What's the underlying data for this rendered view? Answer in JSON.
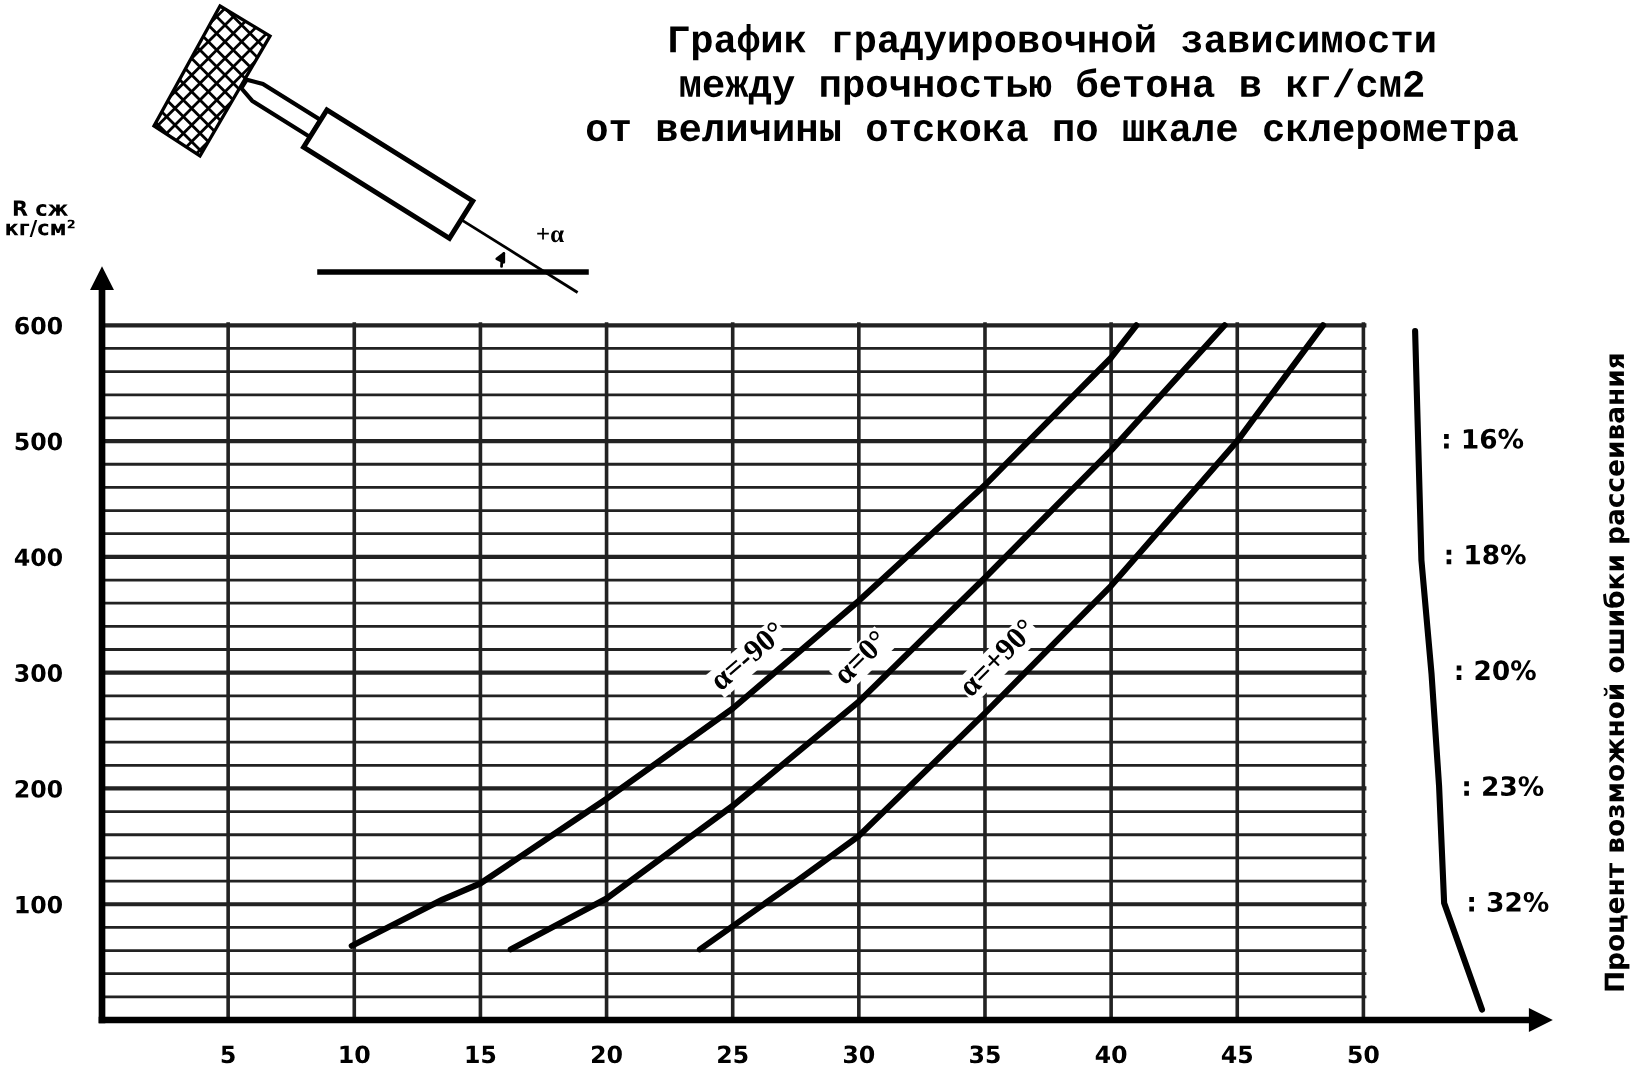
{
  "chart_data": {
    "type": "line",
    "title": "График градуировочной зависимости\nмежду прочностью бетона в кг/см2\nот величины отскока по шкале склерометра",
    "ylabel": "R сж\nкг/см²",
    "xlim": [
      0,
      57
    ],
    "xticks": [
      5,
      10,
      15,
      20,
      25,
      30,
      35,
      40,
      45,
      50
    ],
    "ylim": [
      0,
      640
    ],
    "yticks": [
      {
        "value": 20,
        "label": null
      },
      {
        "value": 40,
        "label": null
      },
      {
        "value": 60,
        "label": null
      },
      {
        "value": 80,
        "label": null
      },
      100,
      {
        "value": 120,
        "label": null
      },
      {
        "value": 140,
        "label": null
      },
      {
        "value": 160,
        "label": null
      },
      {
        "value": 180,
        "label": null
      },
      200,
      {
        "value": 220,
        "label": null
      },
      {
        "value": 240,
        "label": null
      },
      {
        "value": 260,
        "label": null
      },
      {
        "value": 280,
        "label": null
      },
      300,
      {
        "value": 320,
        "label": null
      },
      {
        "value": 340,
        "label": null
      },
      {
        "value": 360,
        "label": null
      },
      {
        "value": 380,
        "label": null
      },
      400,
      {
        "value": 420,
        "label": null
      },
      {
        "value": 440,
        "label": null
      },
      {
        "value": 460,
        "label": null
      },
      {
        "value": 480,
        "label": null
      },
      500,
      {
        "value": 520,
        "label": null
      },
      {
        "value": 540,
        "label": null
      },
      {
        "value": 560,
        "label": null
      },
      {
        "value": 580,
        "label": null
      },
      600
    ],
    "grid": true,
    "series": [
      {
        "name": "α=-90°",
        "color": "#000000",
        "x": [
          9.9,
          13.5,
          15,
          20,
          25,
          30,
          35,
          40,
          41
        ],
        "values": [
          64,
          104,
          118,
          191,
          269,
          362,
          462,
          572,
          600
        ]
      },
      {
        "name": "α=0°",
        "color": "#000000",
        "x": [
          16.2,
          20,
          25,
          30,
          35,
          40,
          44.5
        ],
        "values": [
          61,
          105,
          185,
          275,
          382,
          492,
          600
        ]
      },
      {
        "name": "α=+90°",
        "color": "#000000",
        "x": [
          23.7,
          27.6,
          30,
          35,
          40,
          45,
          48.4
        ],
        "values": [
          61,
          121,
          159,
          265,
          375,
          500,
          600
        ]
      },
      {
        "color": "#000000",
        "x": [
          52.05,
          52.3,
          52.7,
          53.0,
          53.2,
          54.7
        ],
        "values": [
          595,
          397,
          299,
          202,
          101,
          9
        ]
      }
    ],
    "annotations": [
      "+α",
      "Процент возможной ошибки рассеивания",
      {
        "text": ": 16%",
        "x": 52.2,
        "y": 500
      },
      {
        "text": ": 18%",
        "x": 52.3,
        "y": 400
      },
      {
        "text": ": 20%",
        "x": 52.7,
        "y": 300
      },
      {
        "text": ": 23%",
        "x": 53.0,
        "y": 200
      },
      {
        "text": ": 32%",
        "x": 53.2,
        "y": 100
      }
    ]
  }
}
